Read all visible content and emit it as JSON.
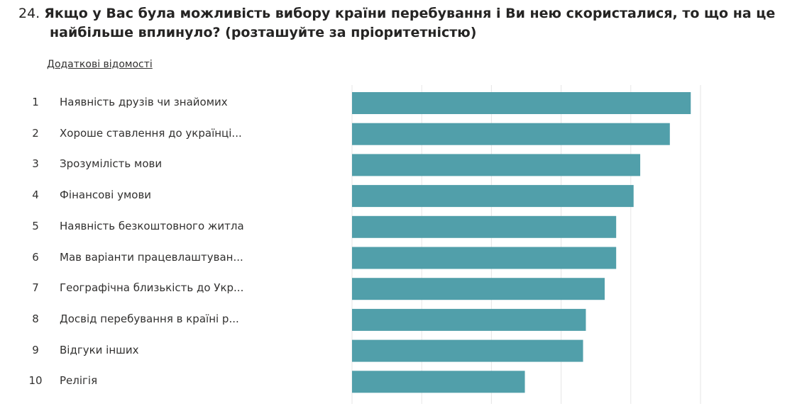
{
  "question": {
    "number": "24.",
    "text_line1": "Якщо у Вас була можливість вибору країни перебування і Ви нею скористалися, то що на це",
    "text_line2": "найбільше вплинуло? (розташуйте за пріоритетністю)"
  },
  "details_link": "Додаткові відомості",
  "colors": {
    "bar": "#519faa",
    "grid": "#e6e6e6"
  },
  "chart_data": {
    "type": "bar",
    "orientation": "horizontal",
    "categories": [
      "Наявність друзів чи знайомих",
      "Хороше ставлення до українці...",
      "Зрозумілість мови",
      "Фінансові умови",
      "Наявність безкоштовного житла",
      "Мав варіанти працевлаштуван...",
      "Географічна близькість до Укр...",
      "Досвід перебування в країні р...",
      "Відгуки інших",
      "Релігія"
    ],
    "ranks": [
      "1",
      "2",
      "3",
      "4",
      "5",
      "6",
      "7",
      "8",
      "9",
      "10"
    ],
    "values": [
      9.72,
      9.12,
      8.27,
      8.08,
      7.58,
      7.58,
      7.25,
      6.71,
      6.63,
      4.96
    ],
    "xlim": [
      0,
      10
    ],
    "grid": true
  }
}
